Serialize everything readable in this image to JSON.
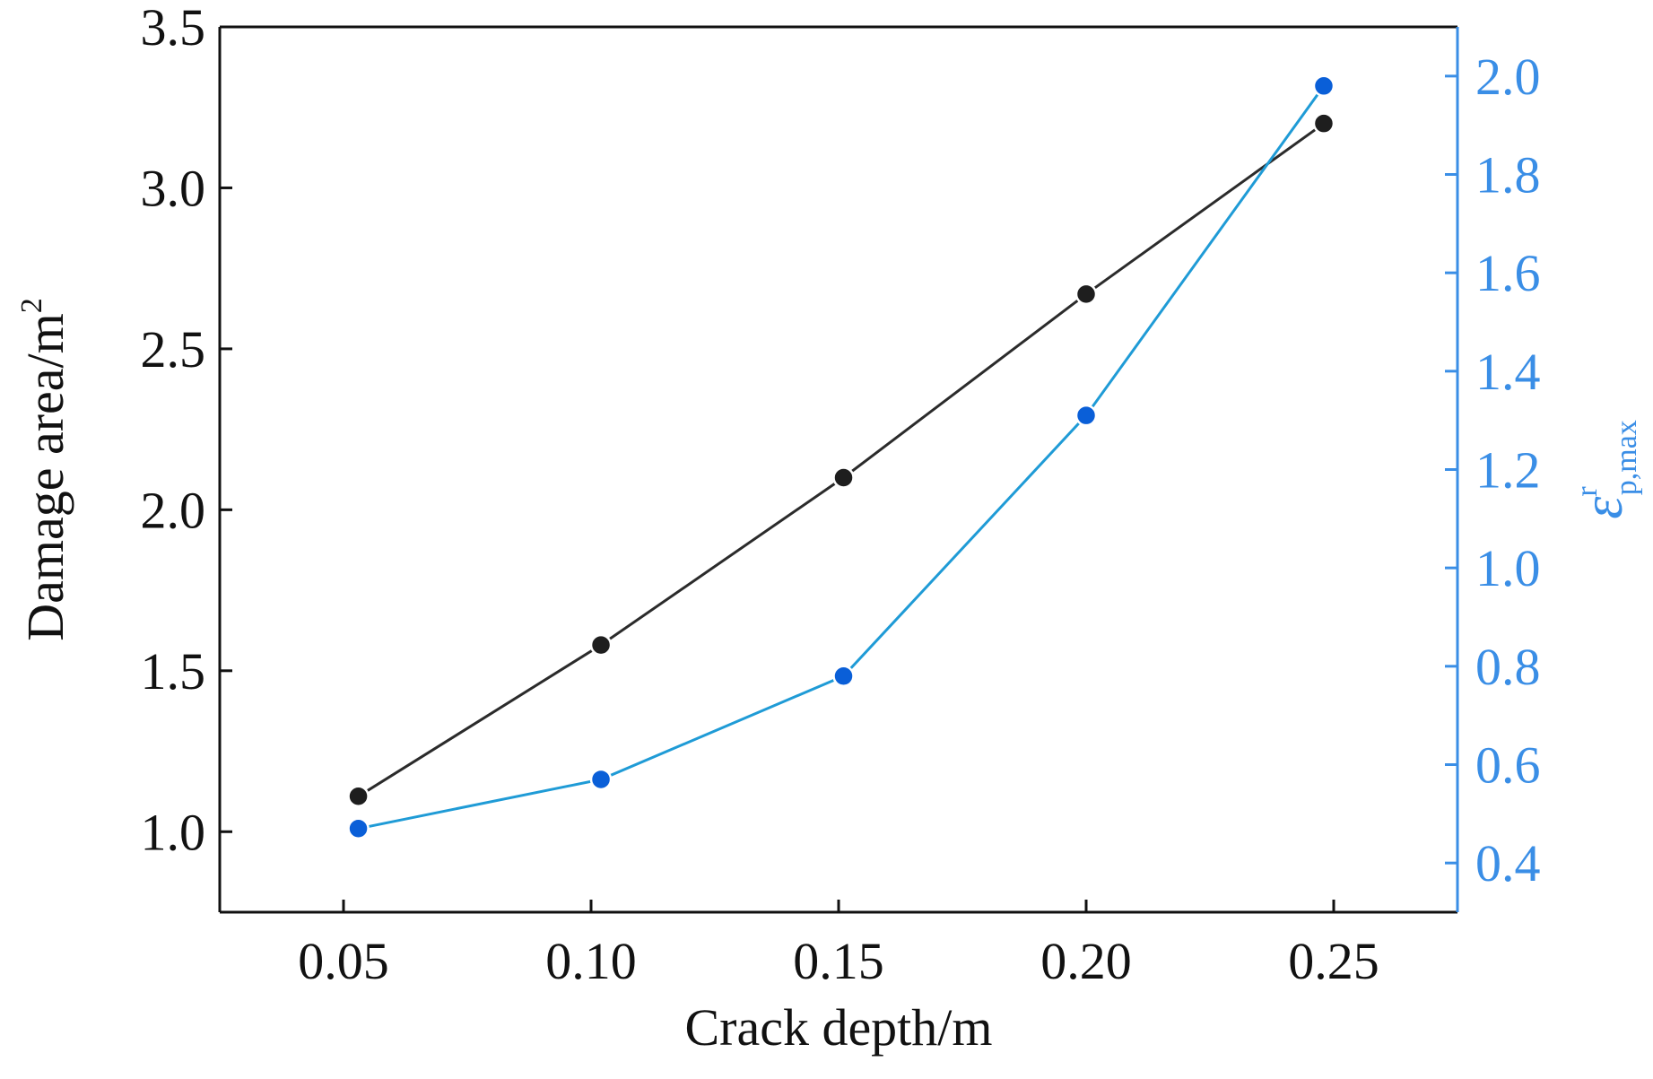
{
  "chart_data": {
    "type": "line",
    "xlabel": "Crack depth/m",
    "ylabel_left": {
      "text": "Damage area/m",
      "superscript": "2"
    },
    "ylabel_right": {
      "base": "ε",
      "sup": "r",
      "sub": "p,max"
    },
    "x_ticks": [
      "0.05",
      "0.10",
      "0.15",
      "0.20",
      "0.25"
    ],
    "y_left_ticks": [
      "1.0",
      "1.5",
      "2.0",
      "2.5",
      "3.0",
      "3.5"
    ],
    "y_right_ticks": [
      "0.4",
      "0.6",
      "0.8",
      "1.0",
      "1.2",
      "1.4",
      "1.6",
      "1.8",
      "2.0"
    ],
    "xlim": [
      0.025,
      0.275
    ],
    "ylim_left": [
      0.75,
      3.5
    ],
    "ylim_right": [
      0.3,
      2.1
    ],
    "grid": false,
    "legend": "none",
    "colors": {
      "left_series": "#2b2b2b",
      "left_marker": "#1e1e1e",
      "right_series": "#1f9bd6",
      "right_marker": "#0a5fd8",
      "right_axis": "#3a8ee6"
    },
    "series": [
      {
        "axis": "left",
        "x": [
          0.053,
          0.102,
          0.151,
          0.2,
          0.248
        ],
        "values": [
          1.11,
          1.58,
          2.1,
          2.67,
          3.2
        ]
      },
      {
        "axis": "right",
        "x": [
          0.053,
          0.102,
          0.151,
          0.2,
          0.248
        ],
        "values": [
          0.47,
          0.57,
          0.78,
          1.31,
          1.98
        ]
      }
    ]
  }
}
